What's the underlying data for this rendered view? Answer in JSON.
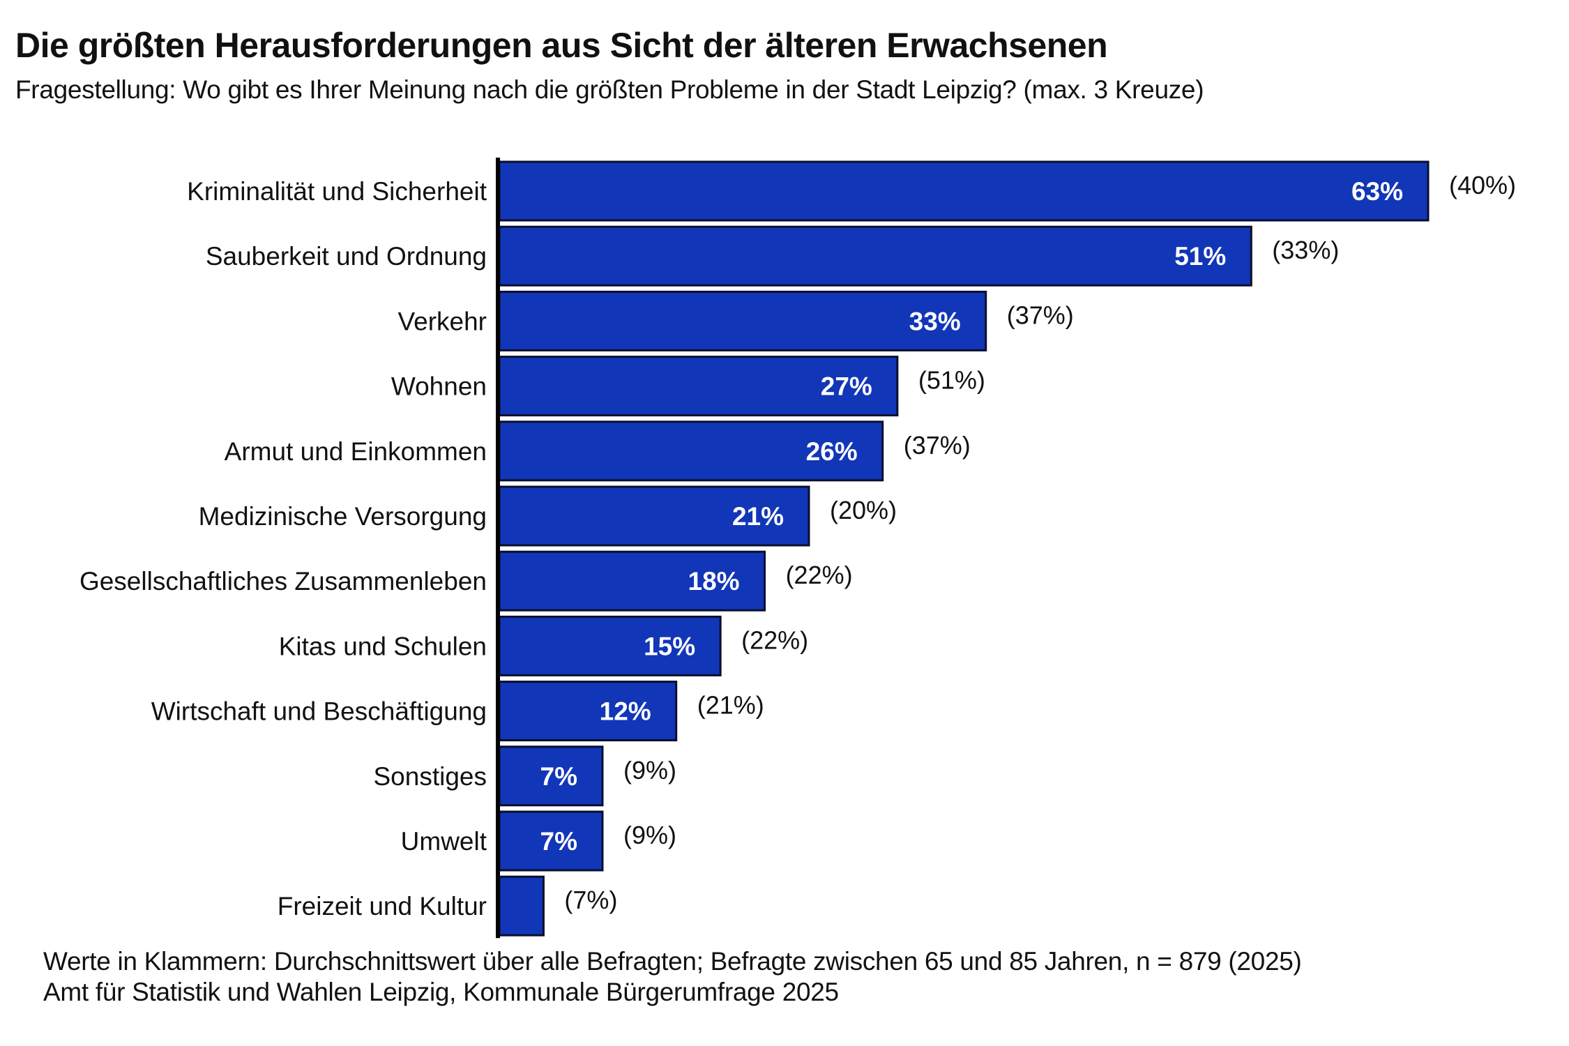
{
  "header": {
    "title": "Die größten Herausforderungen aus Sicht der älteren Erwachsenen",
    "subtitle": "Fragestellung: Wo gibt es Ihrer Meinung nach die größten Probleme in der Stadt Leipzig? (max. 3 Kreuze)"
  },
  "footer": {
    "note": "Werte in Klammern: Durchschnittswert über alle Befragten; Befragte zwischen 65 und 85 Jahren, n = 879 (2025)",
    "source": "Amt für Statistik und Wahlen Leipzig, Kommunale Bürgerumfrage 2025"
  },
  "colors": {
    "bar_fill": "#1236b8",
    "bar_stroke": "#0a0f2e",
    "axis": "#000000"
  },
  "chart_data": {
    "type": "bar",
    "orientation": "horizontal",
    "title": "Die größten Herausforderungen aus Sicht der älteren Erwachsenen",
    "subtitle": "Fragestellung: Wo gibt es Ihrer Meinung nach die größten Probleme in der Stadt Leipzig? (max. 3 Kreuze)",
    "xlabel": "",
    "ylabel": "",
    "xlim": [
      0,
      63
    ],
    "grid": false,
    "legend": "none",
    "unit": "%",
    "categories": [
      "Kriminalität und Sicherheit",
      "Sauberkeit und Ordnung",
      "Verkehr",
      "Wohnen",
      "Armut und Einkommen",
      "Medizinische Versorgung",
      "Gesellschaftliches Zusammenleben",
      "Kitas und Schulen",
      "Wirtschaft und Beschäftigung",
      "Sonstiges",
      "Umwelt",
      "Freizeit und Kultur"
    ],
    "series": [
      {
        "name": "Befragte zwischen 65 und 85 Jahren",
        "values": [
          63,
          51,
          33,
          27,
          26,
          21,
          18,
          15,
          12,
          7,
          7,
          3
        ],
        "labels": [
          "63%",
          "51%",
          "33%",
          "27%",
          "26%",
          "21%",
          "18%",
          "15%",
          "12%",
          "7%",
          "7%",
          ""
        ]
      },
      {
        "name": "Durchschnittswert über alle Befragten",
        "values": [
          40,
          33,
          37,
          51,
          37,
          20,
          22,
          22,
          21,
          9,
          9,
          7
        ],
        "labels": [
          "(40%)",
          "(33%)",
          "(37%)",
          "(51%)",
          "(37%)",
          "(20%)",
          "(22%)",
          "(22%)",
          "(21%)",
          "(9%)",
          "(9%)",
          "(7%)"
        ]
      }
    ]
  }
}
